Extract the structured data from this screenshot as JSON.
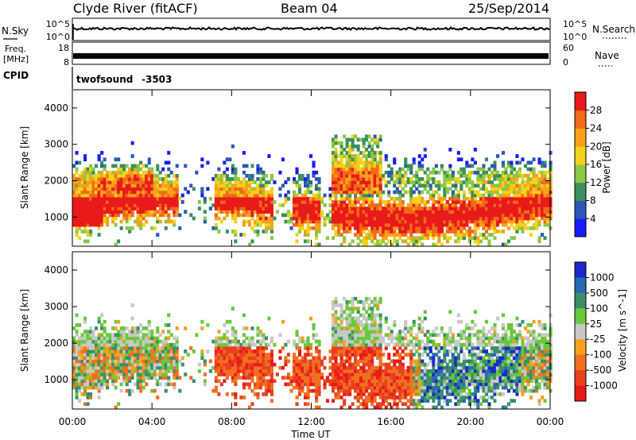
{
  "header": {
    "title": "Clyde River (fitACF)",
    "beam": "Beam 04",
    "date": "25/Sep/2014"
  },
  "noise_panel": {
    "left_label": "N.Sky",
    "right_label": "N.Search",
    "left_ticks": [
      "10^5",
      "10^0"
    ],
    "right_ticks": [
      "10^5",
      "10^0"
    ]
  },
  "freq_panel": {
    "left_label_1": "Freq.",
    "left_label_2": "[MHz]",
    "right_label": "Nave",
    "left_ticks": [
      "18",
      "8"
    ],
    "right_ticks": [
      "60",
      "0"
    ]
  },
  "cpid_panel": {
    "label": "CPID",
    "program": "twofsound",
    "cpid": "-3503"
  },
  "chart_data": [
    {
      "type": "heatmap",
      "ylabel": "Slant Range [km]",
      "y_ticks": [
        "1000",
        "2000",
        "3000",
        "4000"
      ],
      "ylim": [
        200,
        4500
      ],
      "xlim_hours": [
        0,
        24
      ],
      "colorbar": {
        "label": "Power [dB]",
        "ticks": [
          "4",
          "8",
          "12",
          "16",
          "20",
          "24",
          "28"
        ],
        "range": [
          0,
          32
        ],
        "colors": [
          "#1a1aff",
          "#2a56b8",
          "#3a8f5a",
          "#8ac845",
          "#f2d21a",
          "#f7a21a",
          "#f06a1a",
          "#e81a1a"
        ]
      }
    },
    {
      "type": "heatmap",
      "ylabel": "Slant Range [km]",
      "y_ticks": [
        "1000",
        "2000",
        "3000",
        "4000"
      ],
      "ylim": [
        200,
        4500
      ],
      "xlim_hours": [
        0,
        24
      ],
      "colorbar": {
        "label": "Velocity [m s^-1]",
        "ticks": [
          "1000",
          "500",
          "100",
          "25",
          "-25",
          "-100",
          "-500",
          "-1000"
        ],
        "colors": [
          "#1a2ac8",
          "#2a6ab0",
          "#3a8f6a",
          "#6ac83a",
          "#c8c8c8",
          "#f5a020",
          "#f07020",
          "#e84020",
          "#e81a1a"
        ]
      }
    }
  ],
  "x_axis": {
    "label": "Time UT",
    "ticks": [
      "00:00",
      "04:00",
      "08:00",
      "12:00",
      "16:00",
      "20:00",
      "00:00"
    ]
  }
}
